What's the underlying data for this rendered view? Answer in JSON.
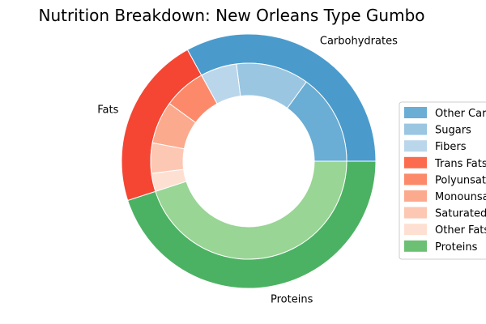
{
  "chart_data": {
    "type": "pie",
    "subtype": "nested-donut",
    "title": "Nutrition Breakdown:  New Orleans Type Gumbo",
    "outer_ring": [
      {
        "label": "Carbohydrates",
        "value": 33,
        "color": "#4a9bcc"
      },
      {
        "label": "Fats",
        "value": 22,
        "color": "#f44633"
      },
      {
        "label": "Proteins",
        "value": 45,
        "color": "#4cb263"
      }
    ],
    "inner_ring": [
      {
        "label": "Other Carbohydrates",
        "value": 15,
        "color": "#6aadd5"
      },
      {
        "label": "Sugars",
        "value": 12,
        "color": "#9ac6e2"
      },
      {
        "label": "Fibers",
        "value": 6,
        "color": "#bad6eb"
      },
      {
        "label": "Trans Fats",
        "value": 0,
        "color": "#fc6b4e"
      },
      {
        "label": "Polyunsaturated Fats",
        "value": 7,
        "color": "#fc8a6a"
      },
      {
        "label": "Monounsaturated Fats",
        "value": 7,
        "color": "#fcaa8e"
      },
      {
        "label": "Saturated Fats",
        "value": 5,
        "color": "#fdc8b3"
      },
      {
        "label": "Other Fats",
        "value": 3,
        "color": "#fee0d2"
      },
      {
        "label": "Proteins",
        "value": 45,
        "color": "#99d595"
      }
    ],
    "legend": {
      "placement": "center-right",
      "entries": [
        {
          "label": "Other Carbohydrates",
          "color": "#6aadd5"
        },
        {
          "label": "Sugars",
          "color": "#9ac6e2"
        },
        {
          "label": "Fibers",
          "color": "#bad6eb"
        },
        {
          "label": "Trans Fats",
          "color": "#fc6b4e"
        },
        {
          "label": "Polyunsaturated Fats",
          "color": "#fc8a6a"
        },
        {
          "label": "Monounsaturated Fats",
          "color": "#fcaa8e"
        },
        {
          "label": "Saturated Fats",
          "color": "#fdc8b3"
        },
        {
          "label": "Other Fats",
          "color": "#fee0d2"
        },
        {
          "label": "Proteins",
          "color": "#6cc073"
        }
      ]
    }
  }
}
